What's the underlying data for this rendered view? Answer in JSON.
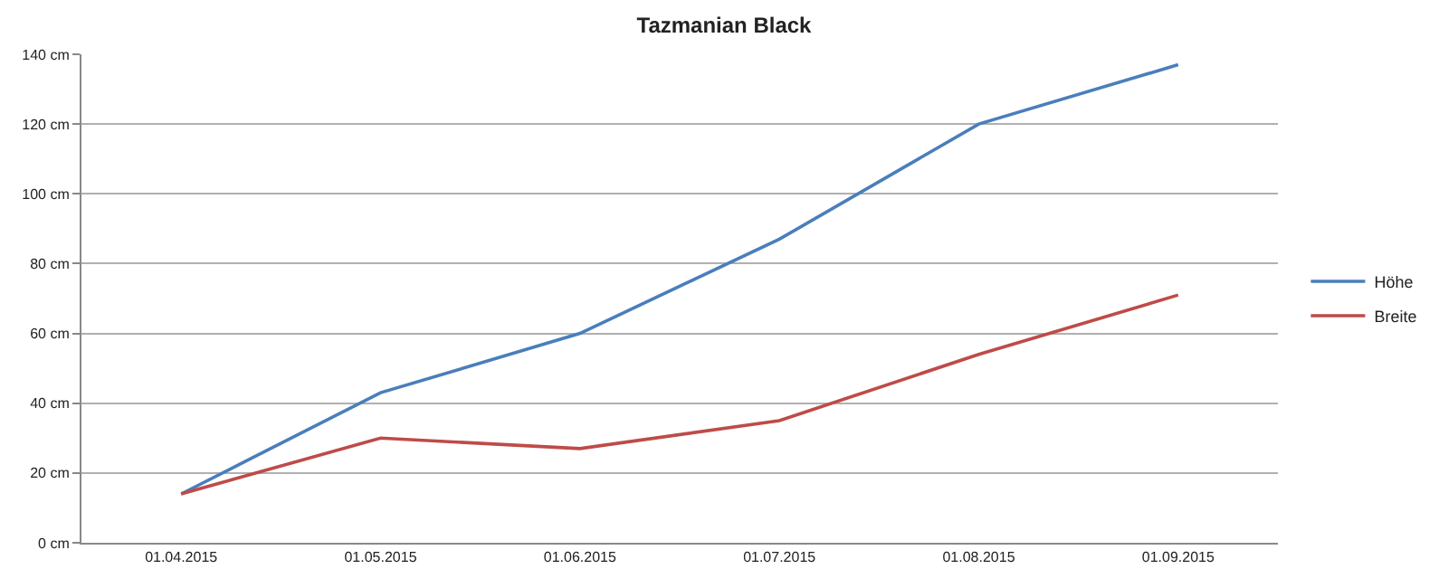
{
  "chart_data": {
    "type": "line",
    "title": "Tazmanian Black",
    "categories": [
      "01.04.2015",
      "01.05.2015",
      "01.06.2015",
      "01.07.2015",
      "01.08.2015",
      "01.09.2015"
    ],
    "series": [
      {
        "name": "Höhe",
        "color": "#4a7ebb",
        "values": [
          14,
          43,
          60,
          87,
          120,
          137
        ]
      },
      {
        "name": "Breite",
        "color": "#be4b48",
        "values": [
          14,
          30,
          27,
          35,
          54,
          71
        ]
      }
    ],
    "ylim": [
      0,
      140
    ],
    "yticks": [
      {
        "value": 0,
        "label": "0 cm"
      },
      {
        "value": 20,
        "label": "20 cm"
      },
      {
        "value": 40,
        "label": "40 cm"
      },
      {
        "value": 60,
        "label": "60 cm"
      },
      {
        "value": 80,
        "label": "80 cm"
      },
      {
        "value": 100,
        "label": "100 cm"
      },
      {
        "value": 120,
        "label": "120 cm"
      },
      {
        "value": 140,
        "label": "140 cm"
      }
    ],
    "grid": "y",
    "legend": "right",
    "marker": "none",
    "line_style": "solid"
  }
}
